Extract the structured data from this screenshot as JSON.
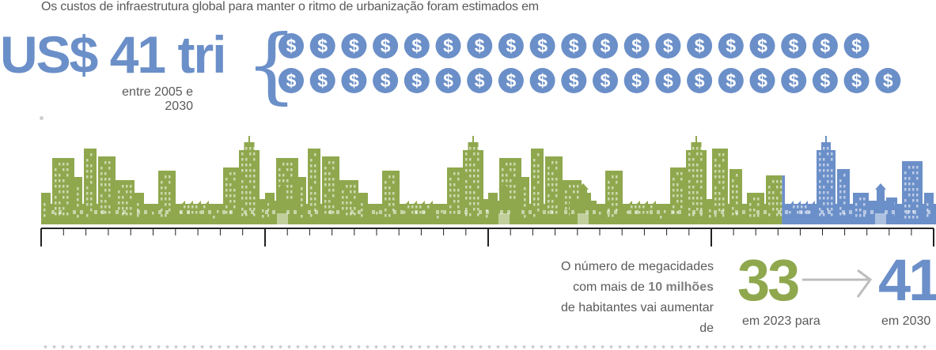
{
  "intro_text": "Os custos de infraestrutura global para manter o ritmo de urbanização foram estimados em",
  "amount": "US$ 41 tri",
  "period": "entre 2005 e 2030",
  "coin_symbol": "$",
  "coin_rows": [
    19,
    20
  ],
  "colors": {
    "blue": "#6b8fc8",
    "green": "#8fa84e",
    "grey_text": "#5a5a5a",
    "arrow": "#bdbdbd"
  },
  "megacities": {
    "line1": "O número de megacidades",
    "line2_prefix": "com mais de ",
    "line2_bold": "10 milhões",
    "line3": "de habitantes vai aumentar de",
    "from_value": "33",
    "from_label": "em 2023 para",
    "to_value": "41",
    "to_label": "em 2030"
  },
  "skyline_share": {
    "green": 33,
    "blue": 8
  }
}
